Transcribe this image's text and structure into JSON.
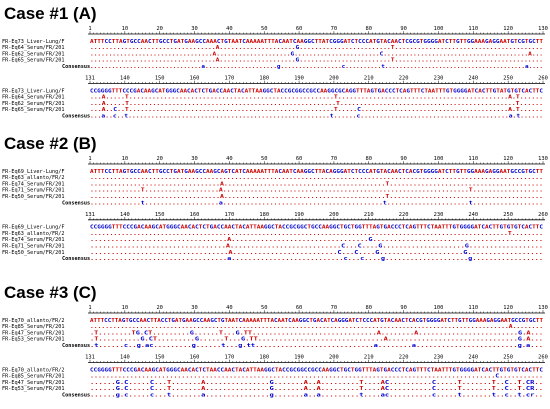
{
  "cases": [
    {
      "title": "Case #1 (A)",
      "blocks": [
        {
          "ticks": [
            "1",
            "10",
            "20",
            "30",
            "40",
            "50",
            "60",
            "70",
            "80",
            "90",
            "100",
            "110",
            "120",
            "130"
          ],
          "rows": [
            {
              "label": "FR-Eq73_Liver-Lung/F",
              "seq": "ATTTCCTTAGTGCCAACTTGCCTGATGAAGCCAAACTGTAATCAAAAATTTACAATCAAGGCTTATCGGGATCTCCCATGTACAACTCGCGTGGGGATCTTGTTGGAAAGAGGAATGTCGTGCTT"
            },
            {
              "label": "FR-Eq64_Serum/FR/201",
              "seq": ".................................A....................G........................T......................................."
            },
            {
              "label": "FR-Eq62_Serum/FR/201",
              "seq": ".................................A....................G.......................C.......................................A..."
            },
            {
              "label": "FR-Eq65_Serum/FR/201",
              "seq": ".................................A....................G........................T......................................."
            },
            {
              "label": "Consensus",
              "seq": "...............................a....................g.................c..........t.......................................a...."
            }
          ]
        },
        {
          "ticks": [
            "131",
            "140",
            "150",
            "160",
            "170",
            "180",
            "190",
            "200",
            "210",
            "220",
            "230",
            "240",
            "250",
            "260"
          ],
          "rows": [
            {
              "label": "FR-Eq73_Liver-Lung/F",
              "seq": "CCGGGGTTTCCCGACAAGCATGGGCAACACTCTGACCAACTACATTAAGGCTACCGCGGCCGCCAAGGCGCAGGTTTAGTGACCCTCAGTTTCTAATTTGTGGGGATCACTTGTATGTGTCACTTC"
            },
            {
              "label": "FR-Eq64_Serum/FR/201",
              "seq": "...A.....T.....................................................T............................................A.T......"
            },
            {
              "label": "FR-Eq62_Serum/FR/201",
              "seq": "...A.....T.....................................................T.............................................T......"
            },
            {
              "label": "FR-Eq65_Serum/FR/201",
              "seq": "...A..C..T.....................................................T.....C......................................A.T......"
            },
            {
              "label": "Consensus",
              "seq": "...a..c..t.....................................................t......c.......................................a.t......"
            }
          ]
        }
      ]
    },
    {
      "title": "Case #2 (B)",
      "blocks": [
        {
          "ticks": [
            "1",
            "10",
            "20",
            "30",
            "40",
            "50",
            "60",
            "70",
            "80",
            "90",
            "100",
            "110",
            "120",
            "130"
          ],
          "rows": [
            {
              "label": "FR-Eq69_Liver-Lung/F",
              "seq": "ATTTCCTTAGTGCCAACTTGCCTGATGAAGCCAAGCAGTCATCAAAAATTTACAATCAAGGCTTACAGGGATCTCCCATGTACAACTCACGTGGGGATCTTGTTGGAAAGAGGAATGCCGTGCTT"
            },
            {
              "label": "FR-Eq63_allanto/FR/2",
              "seq": "...................................................................................................................."
            },
            {
              "label": "FR-Eq74_Serum/FR/201",
              "seq": ".................................A.........................................T......................................."
            },
            {
              "label": "FR-Eq71_Serum/FR/201",
              "seq": ".............T...................A...............................................................T.................."
            },
            {
              "label": "FR-Eq50_Serum/FR/201",
              "seq": ".................................A.........................................T......................................."
            },
            {
              "label": "Consensus",
              "seq": ".............t...................a.........................................t.....................t.................."
            }
          ]
        },
        {
          "ticks": [
            "131",
            "140",
            "150",
            "160",
            "170",
            "180",
            "190",
            "200",
            "210",
            "220",
            "230",
            "240",
            "250",
            "260"
          ],
          "rows": [
            {
              "label": "FR-Eq69_Liver-Lung/F",
              "seq": "CCGGGGTTTCCCGACAAGCATGGGCAACACTCTGACCAACTACATTAAGGCTACCGCGGCTGCCAAGGCTGCTGGTTTAGTGACCCTCAGTTTCTAATTTGTGGGGATCACTTGTGTGTCACTTC"
            },
            {
              "label": "FR-Eq63_allanto/FR/2",
              "seq": "...........................................................................................................T........"
            },
            {
              "label": "FR-Eq74_Serum/FR/201",
              "seq": ".................................A.................................G........................................."
            },
            {
              "label": "FR-Eq71_Serum/FR/201",
              "seq": ".................................A...........................C...C....G....................G.................."
            },
            {
              "label": "FR-Eq50_Serum/FR/201",
              "seq": ".................................A.........................C...C....G....................G.................."
            },
            {
              "label": "Consensus",
              "seq": ".................................a...........................c...c....g....................g................."
            }
          ]
        }
      ]
    },
    {
      "title": "Case #3 (C)",
      "blocks": [
        {
          "ticks": [
            "1",
            "10",
            "20",
            "30",
            "40",
            "50",
            "60",
            "70",
            "80",
            "90",
            "100",
            "110",
            "120",
            "130"
          ],
          "rows": [
            {
              "label": "FR-Eq70_allanto/FR/2",
              "seq": "ATTTCCTTAGTGCCAACTTACCTGATGAAGCCAAGCTGTAATCAAAAATTTACAATCAAGGCTGACATCAGGGATCTCCCATGTACAACTCACGTGGGGATCTTGTTGGAAAGAGGAATGCCGTGCTT"
            },
            {
              "label": "FR-Eq85_Serum/FR/201",
              "seq": "..............................................................................................................A........"
            },
            {
              "label": "FR-Eq47_Serum/FR/201",
              "seq": ".T........TG.CT.........G......T...G.TT..............................A........A........................G.A..."
            },
            {
              "label": "FR-Eq53_Serum/FR/201",
              "seq": ".T..........G.CT.........G......T...G.TT..............................A...............................G.A..."
            },
            {
              "label": "Consensus",
              "seq": ".t......c..g.ac.........g......t...g.tt............................a........a........................g.a..."
            }
          ]
        },
        {
          "ticks": [
            "131",
            "140",
            "150",
            "160",
            "170",
            "180",
            "190",
            "200",
            "210",
            "220",
            "230",
            "240",
            "250",
            "260"
          ],
          "rows": [
            {
              "label": "FR-Eq70_allanto/FR/2",
              "seq": "CCGGGGTTTCCCGACAAGCATGGGCAACACTCTAACCAACTACATTAAGGCTACCGCGGCCGCCAAGGCTGCTGGTTTAGTGACCCTCAGTTTCTAATTTGTGGGGATCACTTGTGTGTCACTTC"
            },
            {
              "label": "FR-Eq85_Serum/FR/201",
              "seq": "......................................................................................................C..........."
            },
            {
              "label": "FR-Eq47_Serum/FR/201",
              "seq": "......G.C.....C...T.......A...............G.......A..A.........T....AC..........C.....T.......T..C..T.CR.."
            },
            {
              "label": "FR-Eq53_Serum/FR/201",
              "seq": "......G.C.....C...T.......A...............G.......A..A.........T....AC..........C.....T.......T..C..T.CR.."
            },
            {
              "label": "Consensus",
              "seq": "......g.c.....c...t.......a...............g.......a..a.........t....ac..........c.....t.......t..c..t.cr.."
            }
          ]
        }
      ]
    }
  ],
  "colors": {
    "A": "#cc0000",
    "T": "#cc0000",
    "G": "#0000cc",
    "C": "#0000cc",
    "dot": "#cc0000",
    "consensus_mismatch": "#0000cc",
    "label": "#000000",
    "ruler": "#000000"
  }
}
